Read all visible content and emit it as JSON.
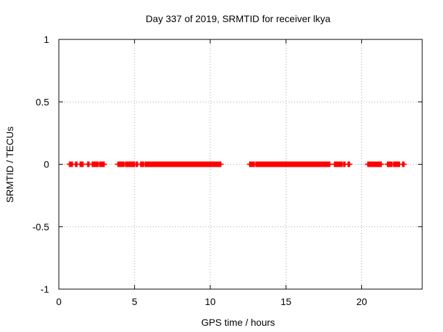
{
  "chart_data": {
    "type": "scatter",
    "title": "Day 337 of 2019, SRMTID for receiver lkya",
    "xlabel": "GPS time / hours",
    "ylabel": "SRMTID / TECUs",
    "xlim": [
      0,
      24
    ],
    "ylim": [
      -1,
      1
    ],
    "grid": true,
    "x_ticks": [
      0,
      5,
      10,
      15,
      20
    ],
    "x_tick_labels": [
      "0",
      "5",
      "10",
      "15",
      "20"
    ],
    "y_ticks": [
      1,
      0.5,
      0,
      -0.5,
      -1
    ],
    "y_tick_labels": [
      "1",
      "0.5",
      "0",
      "-0.5",
      "-1"
    ],
    "series": [
      {
        "name": "SRMTID",
        "color": "#ff0000",
        "marker": "plus",
        "y_value": 0,
        "x_ranges": [
          [
            0.7,
            0.9
          ],
          [
            1.1,
            1.2
          ],
          [
            1.4,
            1.6
          ],
          [
            1.9,
            2.0
          ],
          [
            2.2,
            2.6
          ],
          [
            2.7,
            3.0
          ],
          [
            3.9,
            4.3
          ],
          [
            4.4,
            5.0
          ],
          [
            5.1,
            5.2
          ],
          [
            5.4,
            5.6
          ],
          [
            5.7,
            10.7
          ],
          [
            12.6,
            12.9
          ],
          [
            13.0,
            17.9
          ],
          [
            18.2,
            18.7
          ],
          [
            18.8,
            18.9
          ],
          [
            19.1,
            19.2
          ],
          [
            20.4,
            21.3
          ],
          [
            21.7,
            22.0
          ],
          [
            22.1,
            22.5
          ],
          [
            22.7,
            22.8
          ]
        ]
      }
    ]
  }
}
